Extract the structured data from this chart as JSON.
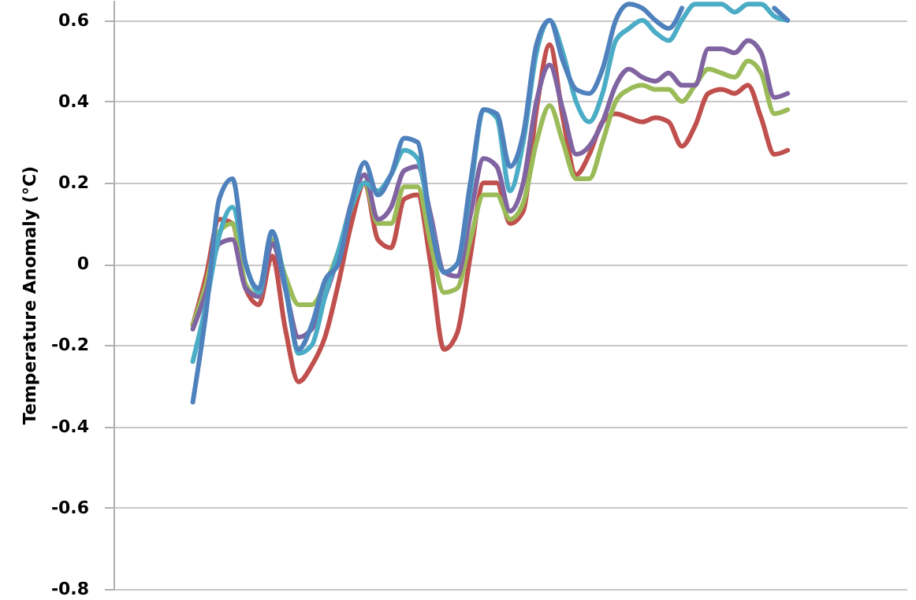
{
  "chart_data": {
    "type": "line",
    "ylabel": "Temperature Anomaly (°C)",
    "categories": [
      null,
      null,
      null,
      null,
      null,
      null,
      null,
      null,
      null,
      null,
      null,
      null,
      null,
      null,
      null,
      null,
      null,
      null,
      null,
      null,
      null,
      null,
      null,
      null,
      null,
      null,
      null,
      null,
      null,
      null,
      null,
      null,
      null,
      null,
      null,
      null,
      null,
      null,
      null,
      null,
      null,
      null,
      null,
      null,
      null,
      null,
      null,
      null,
      null,
      null,
      null,
      null,
      null,
      null,
      null,
      null,
      null,
      null,
      null,
      null,
      null
    ],
    "ylim": [
      -0.8,
      0.65
    ],
    "yticks": [
      -0.8,
      -0.6,
      -0.4,
      -0.2,
      0,
      0.2,
      0.4,
      0.6
    ],
    "grid": "y",
    "tick_labels": "y",
    "line_style": "solid",
    "series": [
      {
        "color": "#c0504d",
        "values": [
          null,
          null,
          null,
          null,
          null,
          null,
          -0.15,
          -0.03,
          0.11,
          0.1,
          -0.06,
          -0.1,
          0.02,
          -0.16,
          -0.29,
          -0.25,
          -0.18,
          -0.05,
          0.1,
          0.2,
          0.06,
          0.04,
          0.16,
          0.17,
          0.0,
          -0.21,
          -0.17,
          0.02,
          0.2,
          0.2,
          0.1,
          0.13,
          0.38,
          0.54,
          0.36,
          0.22,
          0.27,
          0.35,
          0.37,
          0.36,
          0.35,
          0.36,
          0.35,
          0.29,
          0.34,
          0.42,
          0.43,
          0.42,
          0.44,
          0.36,
          0.27,
          0.28,
          null,
          null,
          null,
          null,
          null,
          null,
          null,
          null,
          null
        ]
      },
      {
        "color": "#9bbb59",
        "values": [
          null,
          null,
          null,
          null,
          null,
          null,
          -0.15,
          -0.05,
          0.08,
          0.1,
          -0.05,
          -0.08,
          0.06,
          -0.03,
          -0.1,
          -0.1,
          -0.05,
          0.03,
          0.14,
          0.2,
          0.1,
          0.1,
          0.19,
          0.19,
          0.05,
          -0.07,
          -0.06,
          0.06,
          0.17,
          0.17,
          0.11,
          0.15,
          0.3,
          0.39,
          0.3,
          0.21,
          0.21,
          0.3,
          0.4,
          0.43,
          0.44,
          0.43,
          0.43,
          0.4,
          0.44,
          0.48,
          0.47,
          0.46,
          0.5,
          0.47,
          0.37,
          0.38,
          null,
          null,
          null,
          null,
          null,
          null,
          null,
          null,
          null
        ]
      },
      {
        "color": "#8064a2",
        "values": [
          null,
          null,
          null,
          null,
          null,
          null,
          -0.16,
          -0.07,
          0.05,
          0.06,
          -0.06,
          -0.08,
          0.05,
          -0.06,
          -0.18,
          -0.16,
          -0.08,
          0.02,
          0.15,
          0.22,
          0.11,
          0.14,
          0.23,
          0.24,
          0.12,
          -0.02,
          -0.03,
          0.12,
          0.26,
          0.24,
          0.13,
          0.2,
          0.4,
          0.49,
          0.38,
          0.27,
          0.29,
          0.35,
          0.44,
          0.48,
          0.46,
          0.45,
          0.47,
          0.44,
          0.44,
          0.53,
          0.53,
          0.52,
          0.55,
          0.52,
          0.41,
          0.42,
          null,
          null,
          null,
          null,
          null,
          null,
          null,
          null,
          null
        ]
      },
      {
        "color": "#4bacc6",
        "values": [
          null,
          null,
          null,
          null,
          null,
          null,
          -0.24,
          -0.1,
          0.07,
          0.14,
          0.0,
          -0.07,
          0.08,
          -0.05,
          -0.22,
          -0.2,
          -0.08,
          0.03,
          0.14,
          0.2,
          0.18,
          0.22,
          0.28,
          0.26,
          0.1,
          -0.02,
          0.0,
          0.18,
          0.38,
          0.36,
          0.18,
          0.3,
          0.52,
          0.6,
          0.52,
          0.4,
          0.35,
          0.42,
          0.55,
          0.58,
          0.6,
          0.57,
          0.55,
          0.6,
          0.64,
          0.64,
          0.64,
          0.62,
          0.64,
          0.64,
          0.61,
          0.6,
          null,
          null,
          null,
          null,
          null,
          null,
          null,
          null,
          null
        ]
      },
      {
        "color": "#4f81bd",
        "values": [
          null,
          null,
          null,
          null,
          null,
          null,
          -0.34,
          -0.12,
          0.16,
          0.21,
          0.0,
          -0.06,
          0.08,
          -0.06,
          -0.21,
          -0.15,
          -0.04,
          0.0,
          0.15,
          0.25,
          0.17,
          0.22,
          0.31,
          0.3,
          0.1,
          -0.02,
          0.0,
          0.2,
          0.38,
          0.37,
          0.24,
          0.32,
          0.54,
          0.6,
          0.5,
          0.43,
          0.42,
          0.48,
          0.6,
          0.64,
          0.63,
          0.6,
          0.58,
          0.63,
          null,
          null,
          null,
          null,
          null,
          null,
          0.63,
          0.6,
          null,
          null,
          null,
          null,
          null,
          null,
          null,
          null,
          null
        ]
      }
    ]
  }
}
